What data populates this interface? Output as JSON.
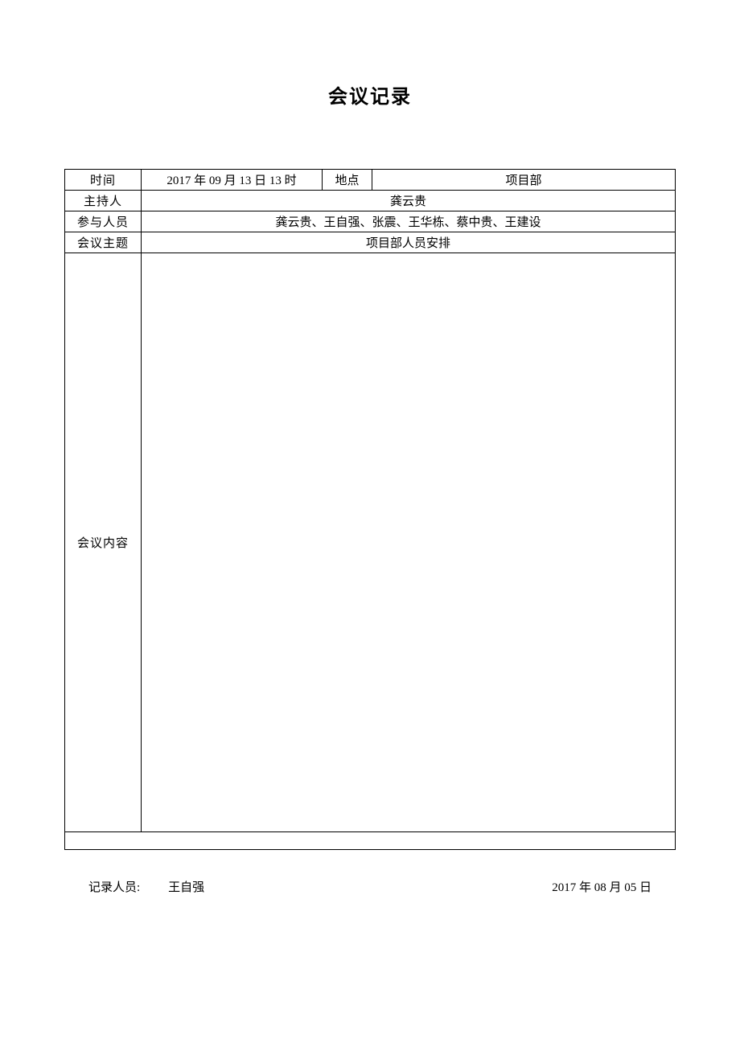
{
  "document": {
    "title": "会议记录",
    "table": {
      "rows": [
        {
          "label": "时间",
          "value": "2017 年 09 月 13 日 13 时",
          "label2": "地点",
          "value2": "项目部"
        },
        {
          "label": "主持人",
          "value": "龚云贵"
        },
        {
          "label": "参与人员",
          "value": "龚云贵、王自强、张震、王华栋、蔡中贵、王建设"
        },
        {
          "label": "会议主题",
          "value": "项目部人员安排"
        },
        {
          "label": "会议内容",
          "value": ""
        }
      ]
    },
    "footer": {
      "recorder_label": "记录人员:",
      "recorder_name": "王自强",
      "record_date": "2017 年 08 月 05 日"
    }
  },
  "styling": {
    "background_color": "#ffffff",
    "border_color": "#000000",
    "title_fontsize": 24,
    "body_fontsize": 15,
    "table_width_pct": 100,
    "content_row_height": 720,
    "empty_row_height": 22,
    "column_widths": {
      "label": 95,
      "time_value": 225,
      "location_label": 62
    }
  }
}
